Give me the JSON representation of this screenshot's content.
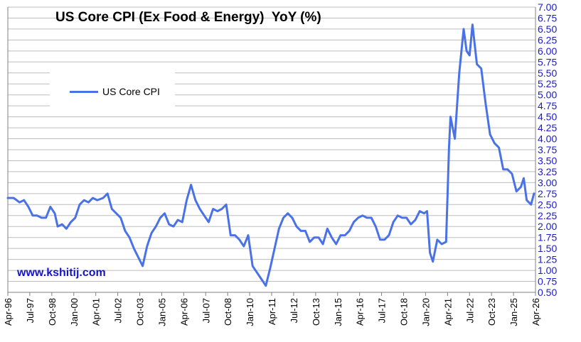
{
  "title": "US Core CPI (Ex Food & Energy)  YoY (%)",
  "watermark": "www.kshitij.com",
  "legend": {
    "label": "US Core CPI"
  },
  "colors": {
    "series": "#4a72e8",
    "grid": "#bdbdbd",
    "ytick": "#1a1ad0",
    "watermark": "#1414c8"
  },
  "chart_data": {
    "type": "line",
    "title": "US Core CPI (Ex Food & Energy)  YoY (%)",
    "xlabel": "",
    "ylabel": "",
    "ylim": [
      0.5,
      7.0
    ],
    "yticks": [
      "0.50",
      "0.75",
      "1.00",
      "1.25",
      "1.50",
      "1.75",
      "2.00",
      "2.25",
      "2.50",
      "2.75",
      "3.00",
      "3.25",
      "3.50",
      "3.75",
      "4.00",
      "4.25",
      "4.50",
      "4.75",
      "5.00",
      "5.25",
      "5.50",
      "5.75",
      "6.00",
      "6.25",
      "6.50",
      "6.75",
      "7.00"
    ],
    "xticks": [
      "Apr-96",
      "Jul-97",
      "Oct-98",
      "Jan-00",
      "Apr-01",
      "Jul-02",
      "Oct-03",
      "Jan-05",
      "Apr-06",
      "Jul-07",
      "Oct-08",
      "Jan-10",
      "Apr-11",
      "Jul-12",
      "Oct-13",
      "Jan-15",
      "Apr-16",
      "Jul-17",
      "Oct-18",
      "Jan-20",
      "Apr-21",
      "Jul-22",
      "Oct-23",
      "Jan-25",
      "Apr-26"
    ],
    "xlim": [
      "Apr-96",
      "Apr-26"
    ],
    "grid": true,
    "legend_position": "upper-left",
    "series": [
      {
        "name": "US Core CPI",
        "points": [
          [
            "1996-04",
            2.65
          ],
          [
            "1996-08",
            2.65
          ],
          [
            "1996-12",
            2.55
          ],
          [
            "1997-03",
            2.6
          ],
          [
            "1997-06",
            2.45
          ],
          [
            "1997-09",
            2.25
          ],
          [
            "1997-12",
            2.25
          ],
          [
            "1998-03",
            2.2
          ],
          [
            "1998-06",
            2.2
          ],
          [
            "1998-09",
            2.45
          ],
          [
            "1998-12",
            2.3
          ],
          [
            "1999-02",
            2.0
          ],
          [
            "1999-05",
            2.05
          ],
          [
            "1999-08",
            1.95
          ],
          [
            "1999-11",
            2.1
          ],
          [
            "2000-02",
            2.2
          ],
          [
            "2000-05",
            2.5
          ],
          [
            "2000-08",
            2.6
          ],
          [
            "2000-11",
            2.55
          ],
          [
            "2001-02",
            2.65
          ],
          [
            "2001-05",
            2.6
          ],
          [
            "2001-09",
            2.65
          ],
          [
            "2001-12",
            2.75
          ],
          [
            "2002-03",
            2.4
          ],
          [
            "2002-06",
            2.3
          ],
          [
            "2002-09",
            2.2
          ],
          [
            "2002-12",
            1.9
          ],
          [
            "2003-03",
            1.75
          ],
          [
            "2003-06",
            1.5
          ],
          [
            "2003-09",
            1.3
          ],
          [
            "2003-12",
            1.1
          ],
          [
            "2004-03",
            1.55
          ],
          [
            "2004-06",
            1.85
          ],
          [
            "2004-09",
            2.0
          ],
          [
            "2004-12",
            2.2
          ],
          [
            "2005-03",
            2.3
          ],
          [
            "2005-06",
            2.05
          ],
          [
            "2005-09",
            2.0
          ],
          [
            "2005-12",
            2.15
          ],
          [
            "2006-03",
            2.1
          ],
          [
            "2006-06",
            2.6
          ],
          [
            "2006-09",
            2.95
          ],
          [
            "2006-12",
            2.6
          ],
          [
            "2007-03",
            2.4
          ],
          [
            "2007-06",
            2.25
          ],
          [
            "2007-09",
            2.1
          ],
          [
            "2007-12",
            2.4
          ],
          [
            "2008-03",
            2.35
          ],
          [
            "2008-06",
            2.4
          ],
          [
            "2008-09",
            2.5
          ],
          [
            "2008-12",
            1.8
          ],
          [
            "2009-03",
            1.8
          ],
          [
            "2009-06",
            1.7
          ],
          [
            "2009-09",
            1.55
          ],
          [
            "2009-12",
            1.8
          ],
          [
            "2010-03",
            1.1
          ],
          [
            "2010-06",
            0.95
          ],
          [
            "2010-09",
            0.8
          ],
          [
            "2010-12",
            0.65
          ],
          [
            "2011-03",
            1.05
          ],
          [
            "2011-06",
            1.5
          ],
          [
            "2011-09",
            1.95
          ],
          [
            "2011-12",
            2.2
          ],
          [
            "2012-03",
            2.3
          ],
          [
            "2012-06",
            2.2
          ],
          [
            "2012-09",
            2.0
          ],
          [
            "2012-12",
            1.9
          ],
          [
            "2013-03",
            1.9
          ],
          [
            "2013-06",
            1.65
          ],
          [
            "2013-09",
            1.75
          ],
          [
            "2013-12",
            1.75
          ],
          [
            "2014-03",
            1.6
          ],
          [
            "2014-06",
            1.95
          ],
          [
            "2014-09",
            1.75
          ],
          [
            "2014-12",
            1.6
          ],
          [
            "2015-03",
            1.8
          ],
          [
            "2015-06",
            1.8
          ],
          [
            "2015-09",
            1.9
          ],
          [
            "2015-12",
            2.1
          ],
          [
            "2016-03",
            2.2
          ],
          [
            "2016-06",
            2.25
          ],
          [
            "2016-09",
            2.2
          ],
          [
            "2016-12",
            2.2
          ],
          [
            "2017-03",
            2.0
          ],
          [
            "2017-06",
            1.7
          ],
          [
            "2017-09",
            1.7
          ],
          [
            "2017-12",
            1.8
          ],
          [
            "2018-03",
            2.1
          ],
          [
            "2018-06",
            2.25
          ],
          [
            "2018-09",
            2.2
          ],
          [
            "2018-12",
            2.2
          ],
          [
            "2019-03",
            2.05
          ],
          [
            "2019-06",
            2.15
          ],
          [
            "2019-09",
            2.35
          ],
          [
            "2019-12",
            2.3
          ],
          [
            "2020-02",
            2.35
          ],
          [
            "2020-04",
            1.4
          ],
          [
            "2020-06",
            1.2
          ],
          [
            "2020-09",
            1.7
          ],
          [
            "2020-12",
            1.6
          ],
          [
            "2021-03",
            1.65
          ],
          [
            "2021-05",
            3.8
          ],
          [
            "2021-06",
            4.5
          ],
          [
            "2021-09",
            4.0
          ],
          [
            "2021-12",
            5.5
          ],
          [
            "2022-03",
            6.5
          ],
          [
            "2022-05",
            6.0
          ],
          [
            "2022-07",
            5.9
          ],
          [
            "2022-09",
            6.6
          ],
          [
            "2022-12",
            5.7
          ],
          [
            "2023-03",
            5.6
          ],
          [
            "2023-06",
            4.8
          ],
          [
            "2023-09",
            4.1
          ],
          [
            "2023-12",
            3.9
          ],
          [
            "2024-03",
            3.8
          ],
          [
            "2024-06",
            3.3
          ],
          [
            "2024-09",
            3.3
          ],
          [
            "2024-12",
            3.2
          ],
          [
            "2025-03",
            2.8
          ],
          [
            "2025-06",
            2.9
          ],
          [
            "2025-08",
            3.1
          ],
          [
            "2025-10",
            2.6
          ],
          [
            "2026-01",
            2.5
          ],
          [
            "2026-03",
            2.75
          ]
        ]
      }
    ]
  }
}
